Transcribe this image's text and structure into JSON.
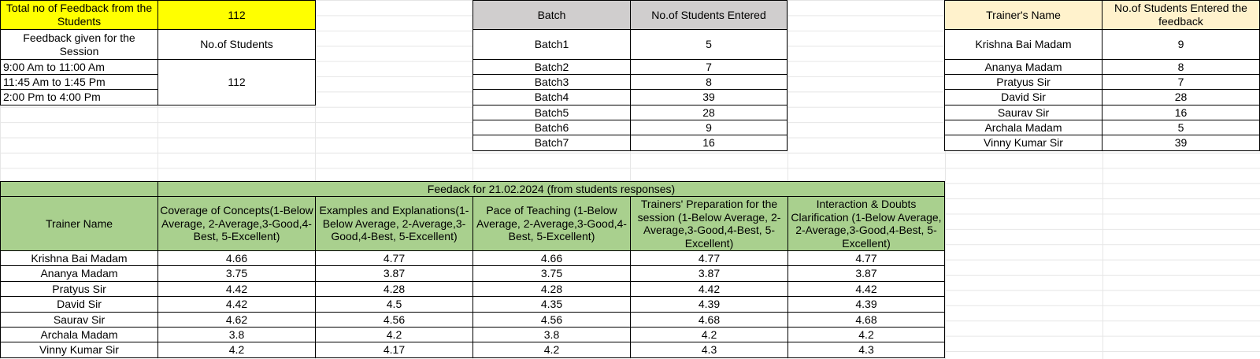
{
  "summary": {
    "total_label": "Total no of Feedback from the Students",
    "total_value": "112",
    "session_header": "Feedback given for the Session",
    "students_header": "No.of Students",
    "sessions": [
      "9:00 Am to 11:00 Am",
      "11:45 Am to 1:45 Pm",
      "2:00 Pm to 4:00 Pm"
    ],
    "sessions_total": "112"
  },
  "batch_table": {
    "headers": [
      "Batch",
      "No.of Students Entered"
    ],
    "rows": [
      [
        "Batch1",
        "5"
      ],
      [
        "Batch2",
        "7"
      ],
      [
        "Batch3",
        "8"
      ],
      [
        "Batch4",
        "39"
      ],
      [
        "Batch5",
        "28"
      ],
      [
        "Batch6",
        "9"
      ],
      [
        "Batch7",
        "16"
      ]
    ]
  },
  "trainer_table": {
    "headers": [
      "Trainer's Name",
      "No.of Students Entered the feedback"
    ],
    "rows": [
      [
        "Krishna Bai Madam",
        "9"
      ],
      [
        "Ananya Madam",
        "8"
      ],
      [
        "Pratyus Sir",
        "7"
      ],
      [
        "David Sir",
        "28"
      ],
      [
        "Saurav Sir",
        "16"
      ],
      [
        "Archala Madam",
        "5"
      ],
      [
        "Vinny Kumar Sir",
        "39"
      ]
    ]
  },
  "feedback_table": {
    "title": "Feedack for 21.02.2024 (from students responses)",
    "trainer_header": "Trainer Name",
    "headers": [
      "Coverage of Concepts(1-Below Average, 2-Average,3-Good,4-Best, 5-Excellent)",
      "Examples and Explanations(1-Below Average, 2-Average,3-Good,4-Best, 5-Excellent)",
      "Pace of Teaching (1-Below Average, 2-Average,3-Good,4-Best, 5-Excellent)",
      "Trainers' Preparation for the session (1-Below Average, 2-Average,3-Good,4-Best, 5-Excellent)",
      "Interaction & Doubts Clarification (1-Below Average, 2-Average,3-Good,4-Best, 5-Excellent)"
    ],
    "rows": [
      [
        "Krishna Bai Madam",
        "4.66",
        "4.77",
        "4.66",
        "4.77",
        "4.77"
      ],
      [
        "Ananya Madam",
        "3.75",
        "3.87",
        "3.75",
        "3.87",
        "3.87"
      ],
      [
        "Pratyus Sir",
        "4.42",
        "4.28",
        "4.28",
        "4.42",
        "4.42"
      ],
      [
        "David Sir",
        "4.42",
        "4.5",
        "4.35",
        "4.39",
        "4.39"
      ],
      [
        "Saurav Sir",
        "4.62",
        "4.56",
        "4.56",
        "4.68",
        "4.68"
      ],
      [
        "Archala Madam",
        "3.8",
        "4.2",
        "3.8",
        "4.2",
        "4.2"
      ],
      [
        "Vinny Kumar Sir",
        "4.2",
        "4.17",
        "4.2",
        "4.3",
        "4.3"
      ]
    ]
  },
  "colors": {
    "yellow": "#ffff00",
    "grey_header": "#d0cece",
    "cream_header": "#fff2cc",
    "green_header": "#a9d08e"
  }
}
